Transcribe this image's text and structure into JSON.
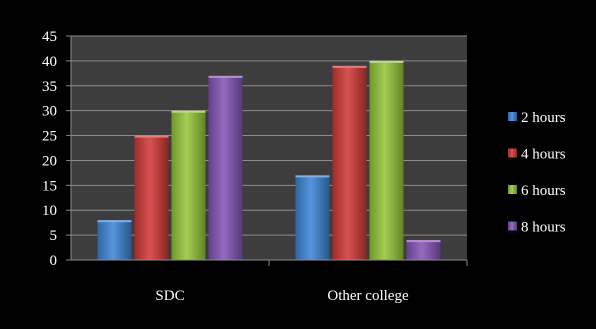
{
  "chart_data": {
    "type": "bar",
    "categories": [
      "SDC",
      "Other college"
    ],
    "series": [
      {
        "name": "2 hours",
        "values": [
          8,
          17
        ],
        "color": "#3f86d6"
      },
      {
        "name": "4 hours",
        "values": [
          25,
          39
        ],
        "color": "#d33a38"
      },
      {
        "name": "6 hours",
        "values": [
          30,
          40
        ],
        "color": "#97c93b"
      },
      {
        "name": "8 hours",
        "values": [
          37,
          4
        ],
        "color": "#8557b8"
      }
    ],
    "y_ticks": [
      "0",
      "5",
      "10",
      "15",
      "20",
      "25",
      "30",
      "35",
      "40",
      "45"
    ],
    "ylim": [
      0,
      45
    ],
    "title": "",
    "xlabel": "",
    "ylabel": "",
    "grid": true,
    "legend": "right"
  }
}
